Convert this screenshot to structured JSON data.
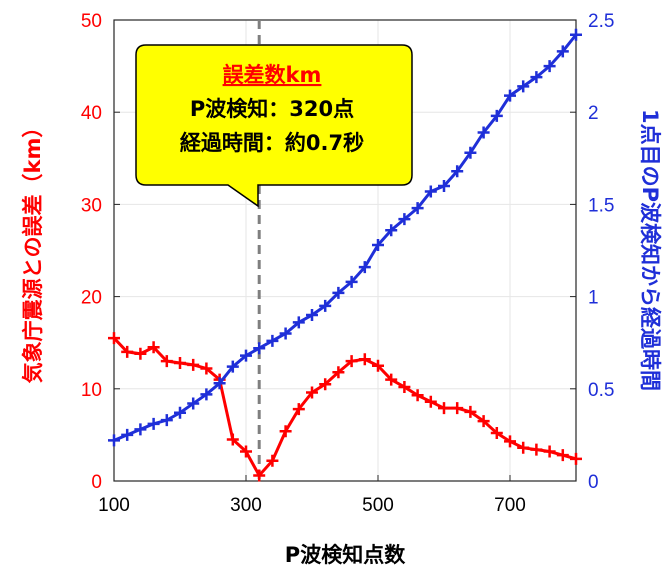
{
  "chart_data": {
    "type": "line",
    "xlabel": "P波検知点数",
    "ylabel_left": "気象庁震源との誤差（km）",
    "ylabel_right": "1点目のP波検知から経過時間",
    "xlim": [
      100,
      800
    ],
    "xticks": [
      "100",
      "300",
      "500",
      "700"
    ],
    "xtick_values": [
      100,
      300,
      500,
      700
    ],
    "ylim_left": [
      0,
      50
    ],
    "yticks_left": [
      "0",
      "10",
      "20",
      "30",
      "40",
      "50"
    ],
    "ytick_values_left": [
      0,
      10,
      20,
      30,
      40,
      50
    ],
    "ylim_right": [
      0,
      2.5
    ],
    "yticks_right": [
      "0",
      "0.5",
      "1",
      "1.5",
      "2",
      "2.5"
    ],
    "ytick_values_right": [
      0,
      0.5,
      1,
      1.5,
      2,
      2.5
    ],
    "grid": true,
    "marker_line_x": 320,
    "series": [
      {
        "axis": "left",
        "color": "#ff0000",
        "x": [
          100,
          120,
          140,
          160,
          180,
          200,
          220,
          240,
          260,
          280,
          300,
          320,
          340,
          360,
          380,
          400,
          420,
          440,
          460,
          480,
          500,
          520,
          540,
          560,
          580,
          600,
          620,
          640,
          660,
          680,
          700,
          720,
          740,
          760,
          780,
          800
        ],
        "y": [
          15.5,
          14,
          13.8,
          14.5,
          13,
          12.8,
          12.6,
          12.2,
          11,
          4.5,
          3.2,
          0.6,
          2.2,
          5.4,
          7.8,
          9.6,
          10.5,
          11.8,
          13,
          13.2,
          12.5,
          11,
          10.2,
          9.3,
          8.6,
          7.9,
          7.9,
          7.5,
          6.5,
          5.2,
          4.3,
          3.6,
          3.4,
          3.2,
          2.8,
          2.4
        ]
      },
      {
        "axis": "right",
        "color": "#1f2fd8",
        "x": [
          100,
          120,
          140,
          160,
          180,
          200,
          220,
          240,
          260,
          280,
          300,
          320,
          340,
          360,
          380,
          400,
          420,
          440,
          460,
          480,
          500,
          520,
          540,
          560,
          580,
          600,
          620,
          640,
          660,
          680,
          700,
          720,
          740,
          760,
          780,
          800
        ],
        "y": [
          0.22,
          0.25,
          0.28,
          0.31,
          0.33,
          0.37,
          0.42,
          0.47,
          0.53,
          0.62,
          0.68,
          0.72,
          0.76,
          0.8,
          0.86,
          0.9,
          0.95,
          1.02,
          1.08,
          1.16,
          1.28,
          1.36,
          1.42,
          1.48,
          1.57,
          1.6,
          1.68,
          1.78,
          1.89,
          1.98,
          2.09,
          2.14,
          2.19,
          2.25,
          2.33,
          2.42
        ]
      }
    ],
    "annotation": {
      "title": "誤差数km",
      "line1": "P波検知：320点",
      "line2": "経過時間：約0.7秒",
      "background": "#ffff00"
    }
  }
}
